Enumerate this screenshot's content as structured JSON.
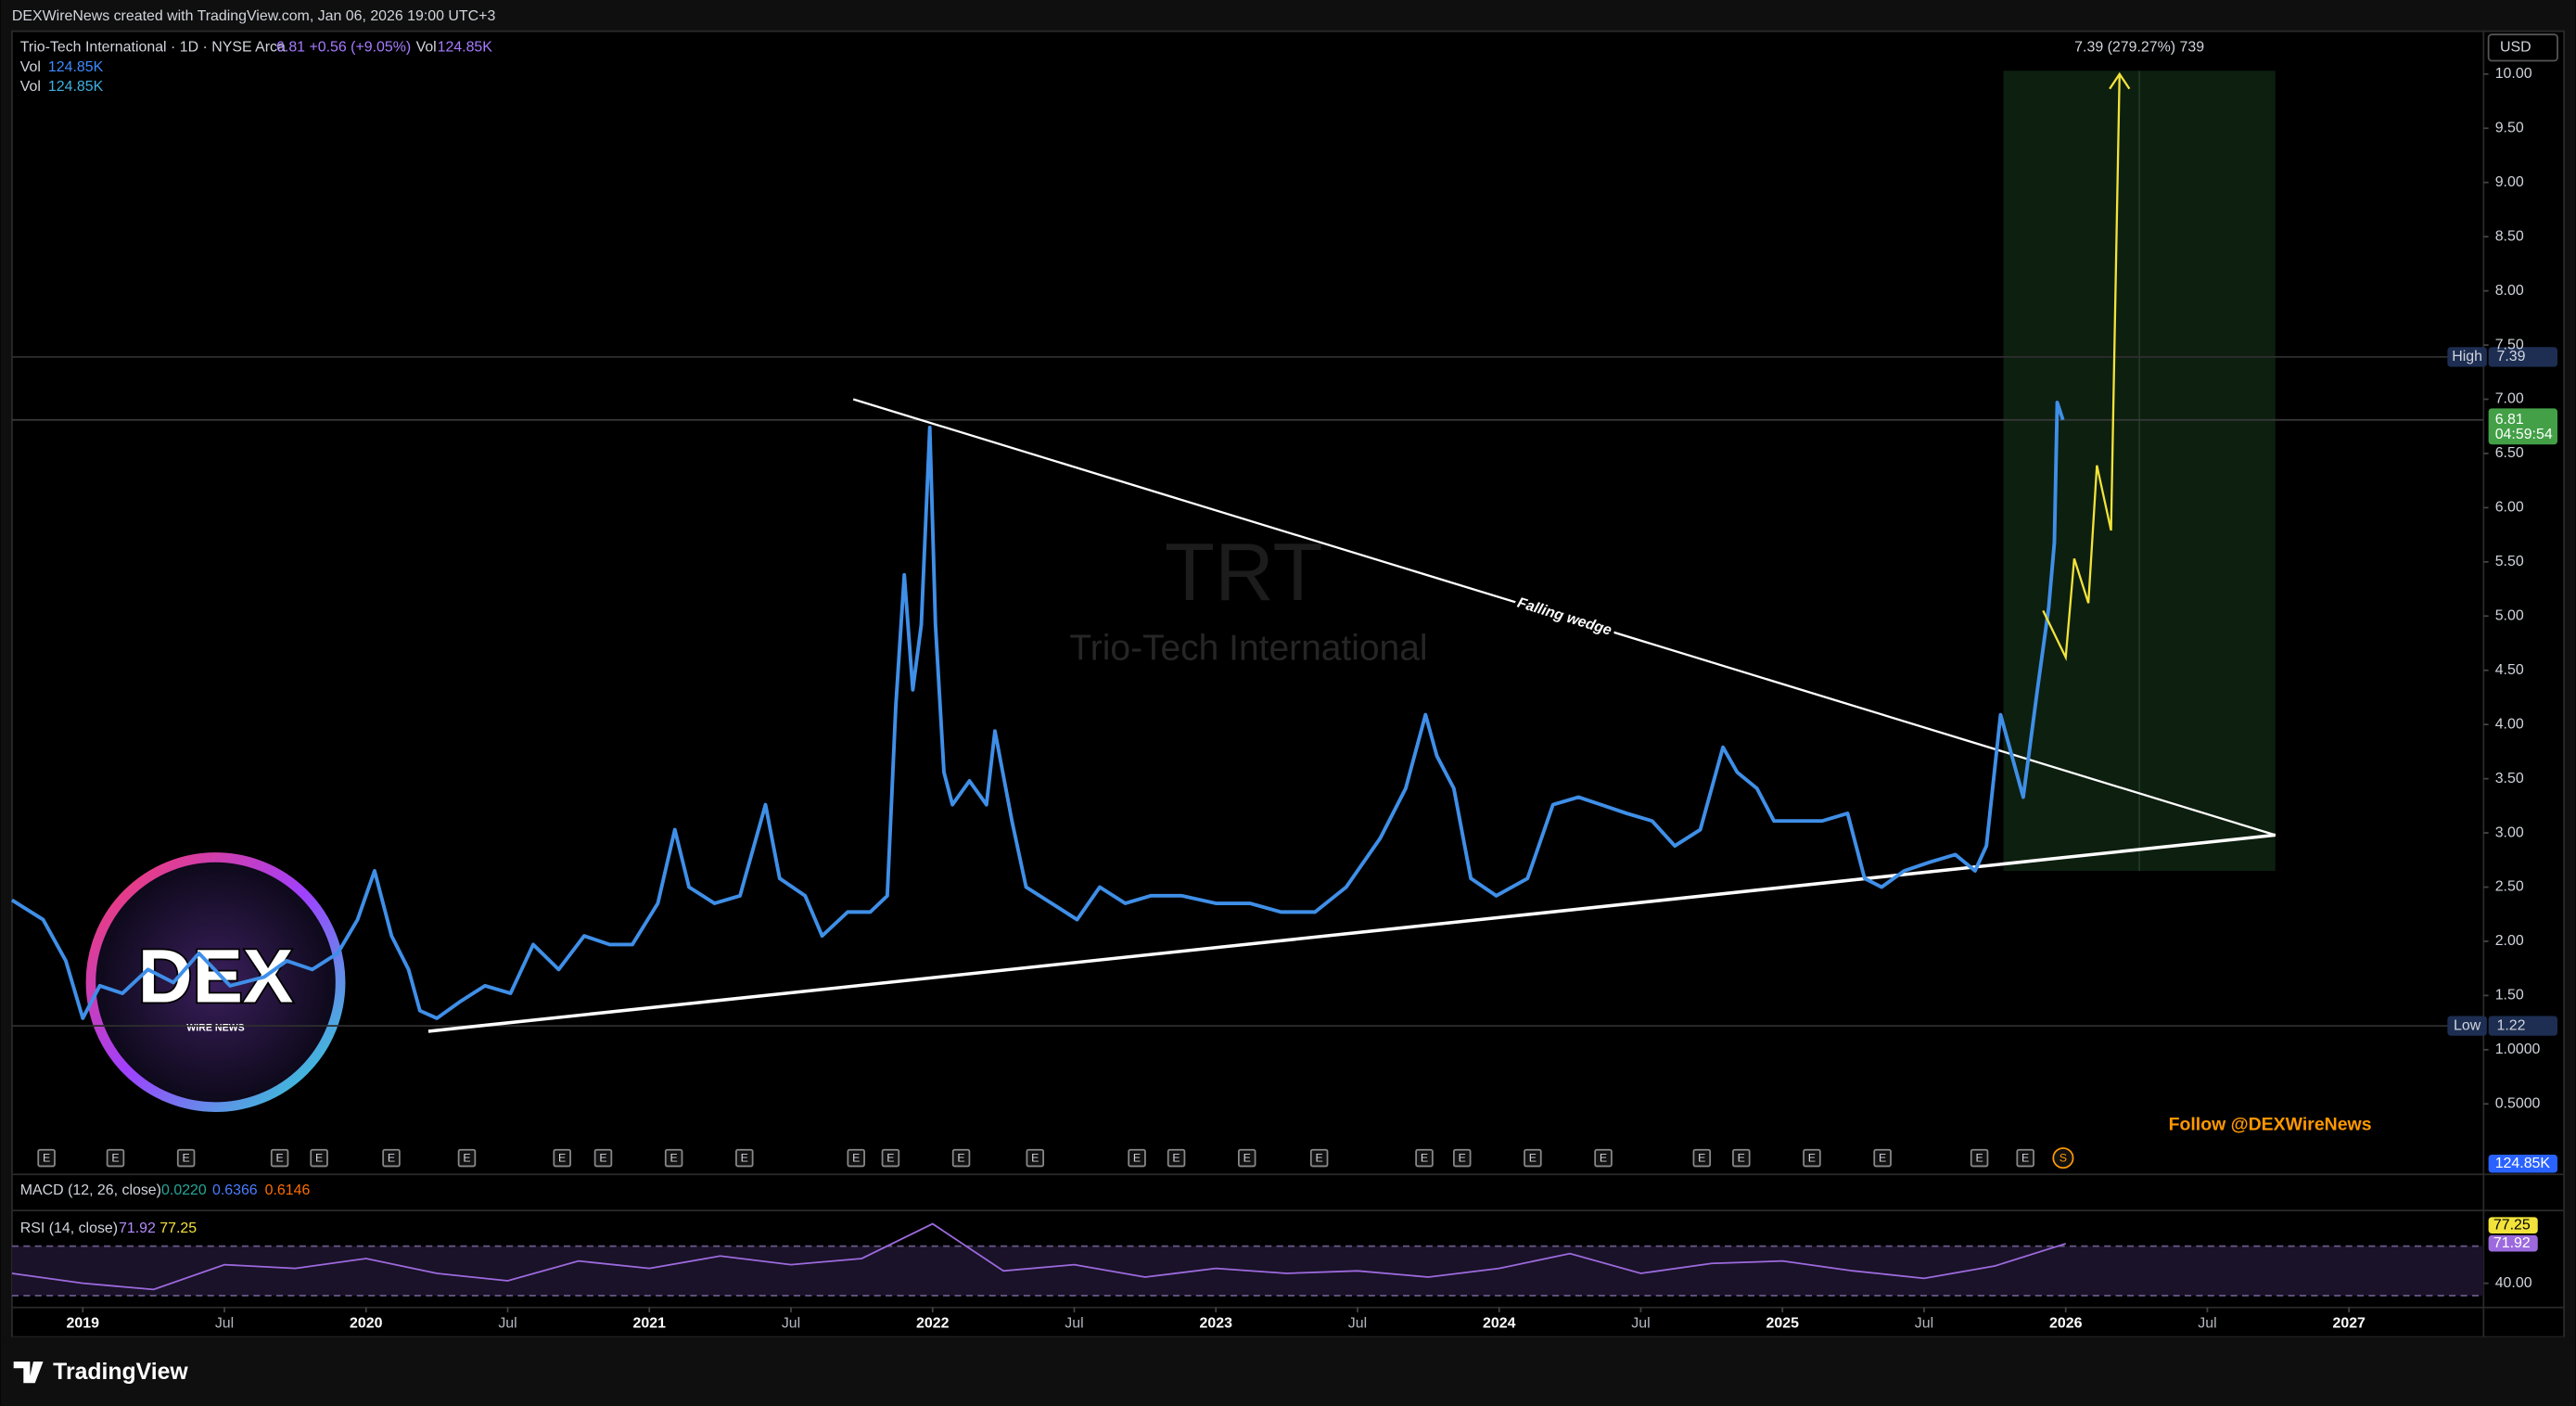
{
  "chart_data": {
    "type": "line",
    "header": "DEXWireNews created with TradingView.com, Jan 06, 2026 19:00 UTC+3",
    "symbol": "Trio-Tech International · 1D · NYSE Arca",
    "last_price": 6.81,
    "change_label": "+0.56 (+9.05%)",
    "volume_label": "Vol",
    "volume": "124.85K",
    "currency": "USD",
    "watermark_ticker": "TRT",
    "watermark_name": "Trio-Tech International",
    "countdown": "04:59:54",
    "color": "#3f8fe8",
    "x": [
      2018.75,
      2018.86,
      2018.94,
      2019.0,
      2019.06,
      2019.14,
      2019.23,
      2019.32,
      2019.41,
      2019.52,
      2019.64,
      2019.72,
      2019.81,
      2019.9,
      2019.97,
      2020.03,
      2020.09,
      2020.15,
      2020.19,
      2020.25,
      2020.33,
      2020.42,
      2020.51,
      2020.59,
      2020.68,
      2020.77,
      2020.86,
      2020.94,
      2021.03,
      2021.09,
      2021.14,
      2021.23,
      2021.32,
      2021.41,
      2021.46,
      2021.55,
      2021.61,
      2021.7,
      2021.78,
      2021.84,
      2021.87,
      2021.9,
      2021.93,
      2021.96,
      2021.99,
      2022.01,
      2022.04,
      2022.07,
      2022.13,
      2022.19,
      2022.22,
      2022.28,
      2022.33,
      2022.42,
      2022.51,
      2022.59,
      2022.68,
      2022.77,
      2022.88,
      2023.0,
      2023.12,
      2023.23,
      2023.35,
      2023.46,
      2023.58,
      2023.67,
      2023.74,
      2023.78,
      2023.84,
      2023.9,
      2023.99,
      2024.1,
      2024.19,
      2024.28,
      2024.36,
      2024.45,
      2024.54,
      2024.62,
      2024.71,
      2024.79,
      2024.84,
      2024.91,
      2024.97,
      2025.06,
      2025.14,
      2025.23,
      2025.29,
      2025.35,
      2025.43,
      2025.52,
      2025.61,
      2025.68,
      2025.72,
      2025.77,
      2025.81,
      2025.85,
      2025.9,
      2025.94,
      2025.96,
      2025.97,
      2025.99
    ],
    "values": [
      2.38,
      2.2,
      1.82,
      1.29,
      1.59,
      1.52,
      1.74,
      1.62,
      1.89,
      1.59,
      1.67,
      1.82,
      1.74,
      1.89,
      2.2,
      2.65,
      2.05,
      1.74,
      1.36,
      1.29,
      1.44,
      1.59,
      1.52,
      1.97,
      1.74,
      2.05,
      1.97,
      1.97,
      2.35,
      3.03,
      2.5,
      2.35,
      2.42,
      3.26,
      2.58,
      2.42,
      2.05,
      2.27,
      2.27,
      2.42,
      4.17,
      5.38,
      4.32,
      4.92,
      6.74,
      4.92,
      3.56,
      3.26,
      3.48,
      3.26,
      3.94,
      3.11,
      2.5,
      2.35,
      2.2,
      2.5,
      2.35,
      2.42,
      2.42,
      2.35,
      2.35,
      2.27,
      2.27,
      2.5,
      2.95,
      3.41,
      4.09,
      3.71,
      3.41,
      2.58,
      2.42,
      2.58,
      3.26,
      3.33,
      3.26,
      3.18,
      3.11,
      2.88,
      3.03,
      3.79,
      3.56,
      3.41,
      3.11,
      3.11,
      3.11,
      3.18,
      2.58,
      2.5,
      2.65,
      2.73,
      2.8,
      2.65,
      2.88,
      4.09,
      3.71,
      3.33,
      4.32,
      5.08,
      5.68,
      6.97,
      6.81
    ],
    "xlim": [
      2018.75,
      2027.475
    ],
    "xticks": [
      2019,
      {
        "value": 2019.5,
        "label": "Jul"
      },
      2020,
      {
        "value": 2020.5,
        "label": "Jul"
      },
      2021,
      {
        "value": 2021.5,
        "label": "Jul"
      },
      2022,
      {
        "value": 2022.5,
        "label": "Jul"
      },
      2023,
      {
        "value": 2023.5,
        "label": "Jul"
      },
      2024,
      {
        "value": 2024.5,
        "label": "Jul"
      },
      2025,
      {
        "value": 2025.5,
        "label": "Jul"
      },
      2026,
      {
        "value": 2026.5,
        "label": "Jul"
      },
      2027
    ],
    "ylim": [
      -0.12,
      10.38
    ],
    "yticks": [
      {
        "value": 0.5,
        "label": "0.5000"
      },
      {
        "value": 1,
        "label": "1.0000"
      },
      {
        "value": 1.5,
        "label": "1.50"
      },
      {
        "value": 2,
        "label": "2.00"
      },
      {
        "value": 2.5,
        "label": "2.50"
      },
      {
        "value": 3,
        "label": "3.00"
      },
      {
        "value": 3.5,
        "label": "3.50"
      },
      {
        "value": 4,
        "label": "4.00"
      },
      {
        "value": 4.5,
        "label": "4.50"
      },
      {
        "value": 5,
        "label": "5.00"
      },
      {
        "value": 5.5,
        "label": "5.50"
      },
      {
        "value": 6,
        "label": "6.00"
      },
      {
        "value": 6.5,
        "label": "6.50"
      },
      {
        "value": 7,
        "label": "7.00"
      },
      {
        "value": 7.5,
        "label": "7.50"
      },
      {
        "value": 8,
        "label": "8.00"
      },
      {
        "value": 8.5,
        "label": "8.50"
      },
      {
        "value": 9,
        "label": "9.00"
      },
      {
        "value": 9.5,
        "label": "9.50"
      },
      {
        "value": 10,
        "label": "10.00"
      }
    ],
    "projection": {
      "color": "#f2e33a",
      "x": [
        2025.92,
        2026.0,
        2026.03,
        2026.08,
        2026.11,
        2026.16,
        2026.19
      ],
      "values": [
        5.05,
        4.62,
        5.53,
        5.12,
        6.39,
        5.79,
        10.0
      ]
    },
    "trendlines": [
      {
        "label": "Falling wedge",
        "x": [
          2021.72,
          2026.74
        ],
        "values": [
          7.0,
          2.98
        ]
      },
      {
        "x": [
          2020.22,
          2026.74
        ],
        "values": [
          1.17,
          2.98
        ]
      }
    ],
    "measure": {
      "label": "7.39 (279.27%) 739",
      "x": [
        2025.78,
        2026.74
      ],
      "values": [
        2.65,
        10.03
      ]
    },
    "levels": [
      {
        "label": "High",
        "value": 7.39
      },
      {
        "label": "Low",
        "value": 1.22
      }
    ],
    "earnings_marker": "E",
    "split_marker": "S",
    "follow": "Follow @DEXWireNews",
    "macd_label": "MACD (12, 26, close)",
    "macd_values": [
      "0.0220",
      "0.6366",
      "0.6146"
    ],
    "rsi": {
      "label": "RSI (14, close)",
      "rsi_value": 71.92,
      "signal_value": 77.25,
      "color": "#9c6ade",
      "x": [
        2018.75,
        2019.0,
        2019.25,
        2019.5,
        2019.75,
        2020.0,
        2020.25,
        2020.5,
        2020.75,
        2021.0,
        2021.25,
        2021.5,
        2021.75,
        2022.0,
        2022.25,
        2022.5,
        2022.75,
        2023.0,
        2023.25,
        2023.5,
        2023.75,
        2024.0,
        2024.25,
        2024.5,
        2024.75,
        2025.0,
        2025.25,
        2025.5,
        2025.75,
        2026.0
      ],
      "values": [
        48,
        40,
        35,
        55,
        52,
        60,
        48,
        42,
        58,
        52,
        62,
        55,
        60,
        88,
        50,
        55,
        45,
        52,
        48,
        50,
        45,
        52,
        64,
        48,
        56,
        58,
        50,
        44,
        54,
        72
      ],
      "ylim": [
        21.8,
        97.4
      ],
      "yticks": [
        {
          "value": 40,
          "label": "40.00"
        }
      ],
      "bands": [
        70,
        30
      ]
    },
    "logo": "DEX",
    "logo_sub": "WIRE NEWS",
    "brand": "TradingView"
  }
}
